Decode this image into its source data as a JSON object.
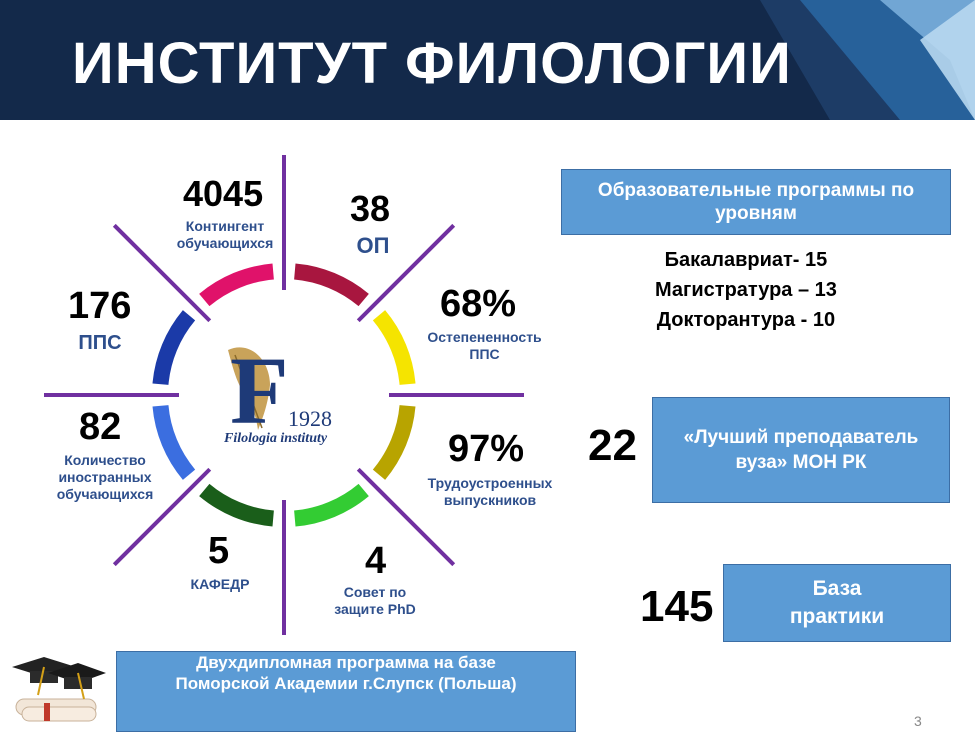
{
  "header": {
    "title": "ИНСТИТУТ ФИЛОЛОГИИ"
  },
  "logo": {
    "letter": "F",
    "year": "1928",
    "name": "Filologia instituty"
  },
  "stats": {
    "contingent": {
      "value": "4045",
      "label": "Контингент обучающихся"
    },
    "op": {
      "value": "38",
      "label": "ОП"
    },
    "degree": {
      "value": "68%",
      "label": "Остепененность ППС"
    },
    "employment": {
      "value": "97%",
      "label": "Трудоустроенных выпускников"
    },
    "phd": {
      "value": "4",
      "label": "Совет по защите PhD"
    },
    "departments": {
      "value": "5",
      "label": "КАФЕДР"
    },
    "foreign": {
      "value": "82",
      "label": "Количество иностранных обучающихся"
    },
    "pps": {
      "value": "176",
      "label": "ППС"
    }
  },
  "programs": {
    "box": "Образовательные программы по уровням",
    "levels": [
      "Бакалавриат- 15",
      "Магистратура – 13",
      "Докторантура - 10"
    ]
  },
  "best_teacher": {
    "value": "22",
    "label": "«Лучший преподаватель вуза» МОН РК"
  },
  "practice": {
    "value": "145",
    "label": "База практики"
  },
  "double_degree": {
    "label": "Двухдипломная программа на базе Поморской Академии  г.Слупск (Польша)"
  },
  "page_number": "3",
  "colors": {
    "banner": "#13294a",
    "box": "#5b9bd5",
    "ring": [
      "#a8163f",
      "#f5e400",
      "#b8a400",
      "#33cc33",
      "#1a5e1a",
      "#3b6ee0",
      "#1b3aa8",
      "#e0126a"
    ],
    "spokes": "#7030a0"
  }
}
